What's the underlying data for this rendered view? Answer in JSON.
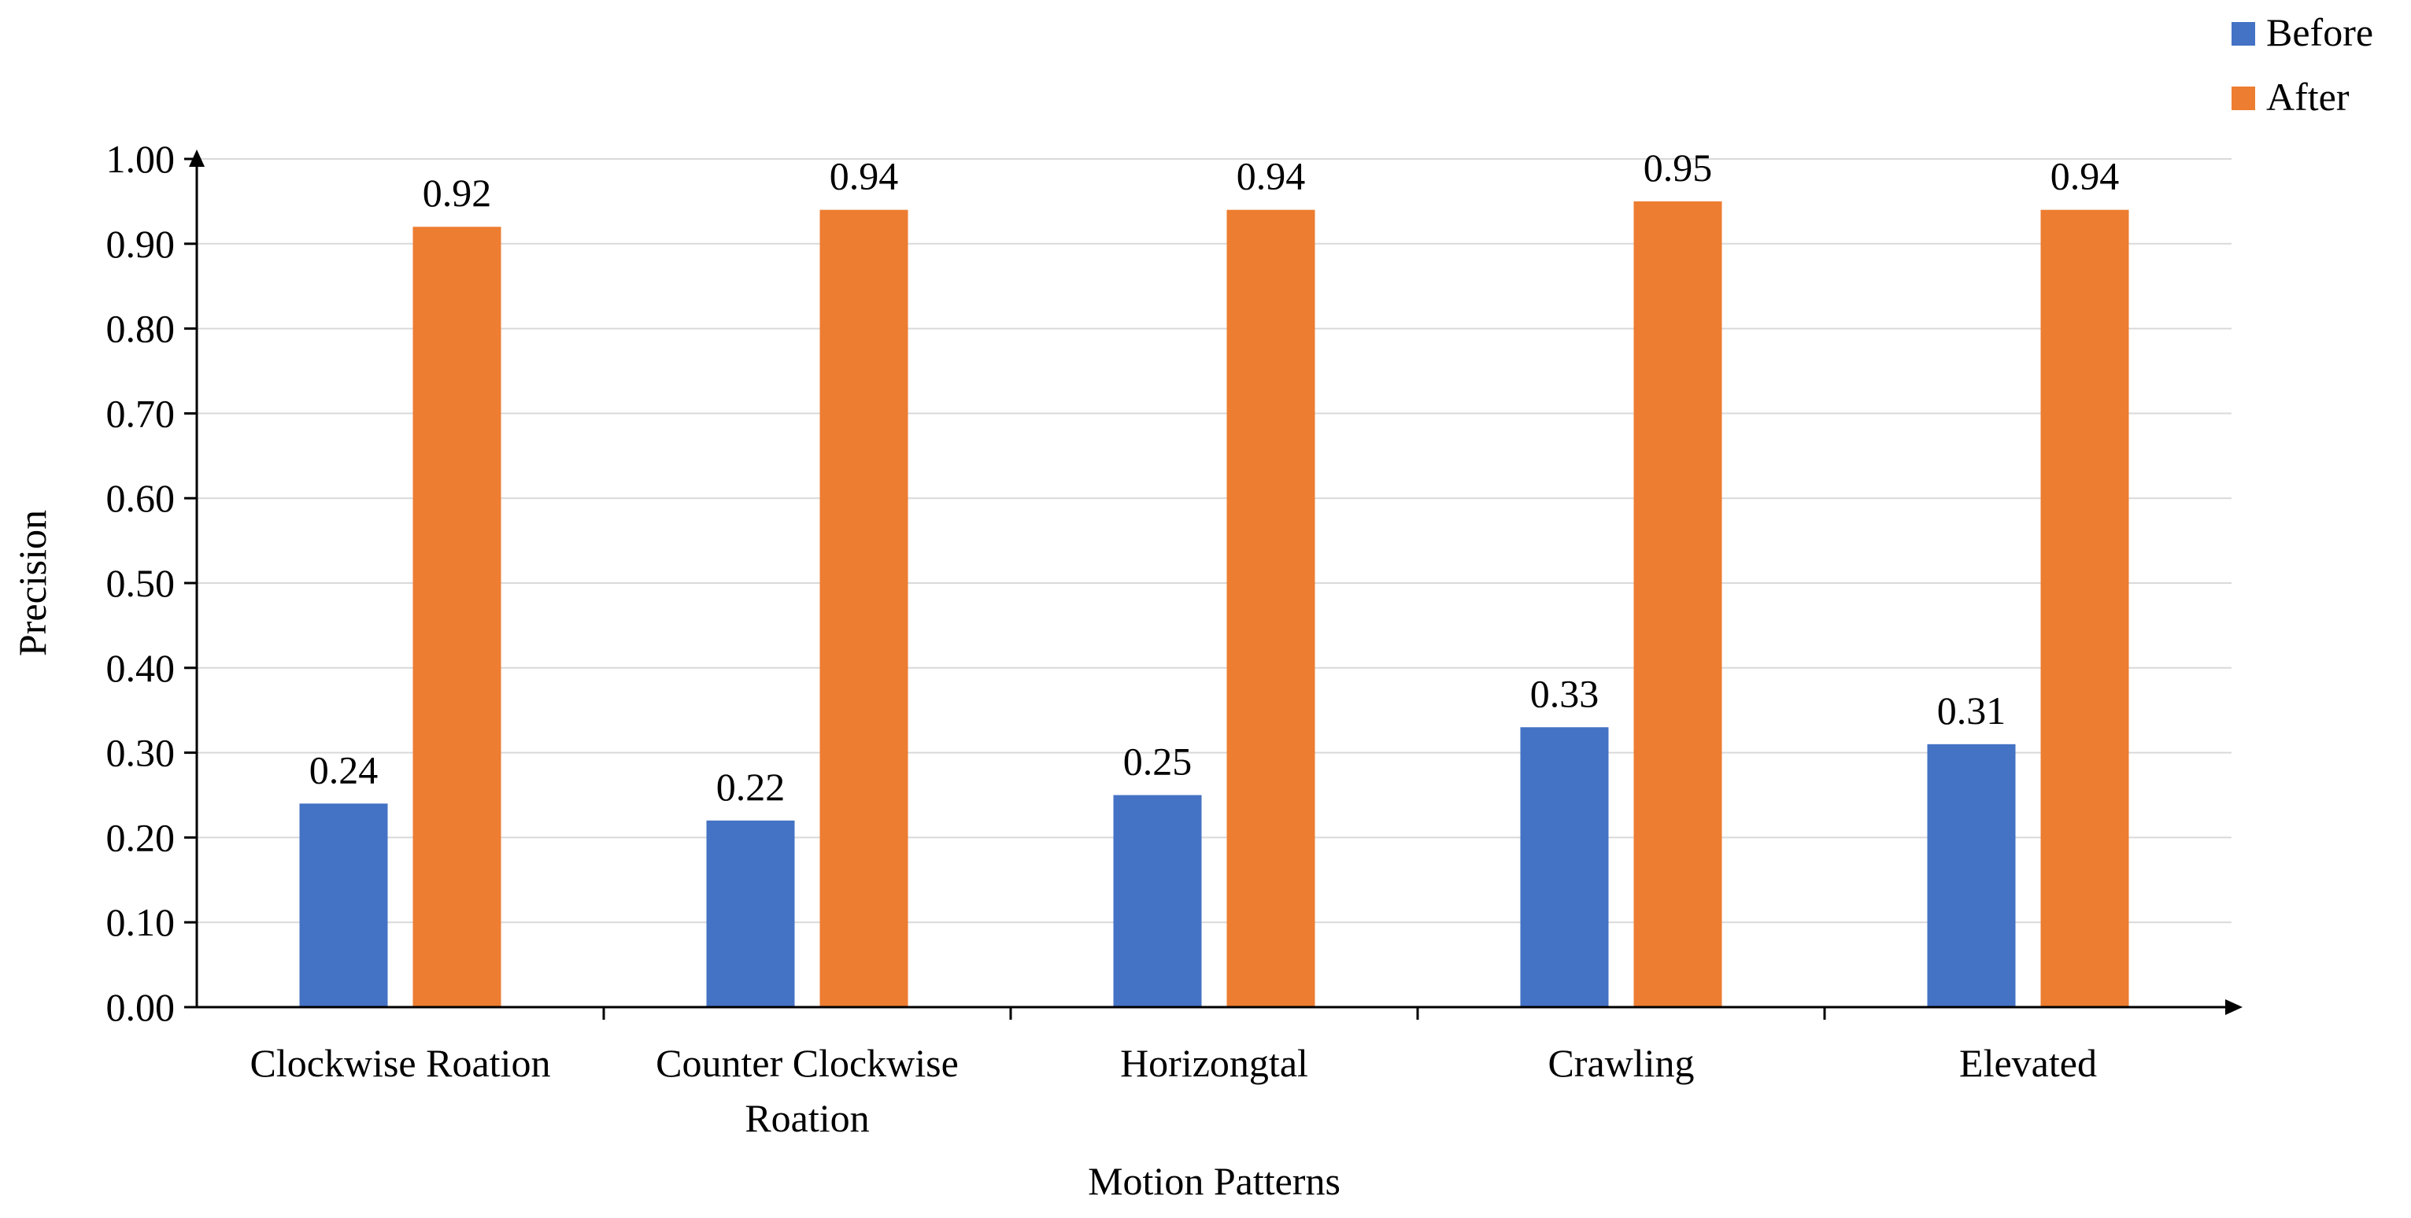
{
  "chart_data": {
    "type": "bar",
    "title": "",
    "xlabel": "Motion Patterns",
    "ylabel": "Precision",
    "ylim": [
      0,
      1
    ],
    "ytick_step": 0.1,
    "ytick_decimals": 2,
    "grid": true,
    "legend_position": "top-right",
    "categories": [
      [
        "Clockwise Roation"
      ],
      [
        "Counter Clockwise",
        "Roation"
      ],
      [
        "Horizongtal"
      ],
      [
        "Crawling"
      ],
      [
        "Elevated"
      ]
    ],
    "series": [
      {
        "name": "Before",
        "color": "#4472C4",
        "values": [
          0.24,
          0.22,
          0.25,
          0.33,
          0.31
        ]
      },
      {
        "name": "After",
        "color": "#ED7D31",
        "values": [
          0.92,
          0.94,
          0.94,
          0.95,
          0.94
        ]
      }
    ]
  }
}
